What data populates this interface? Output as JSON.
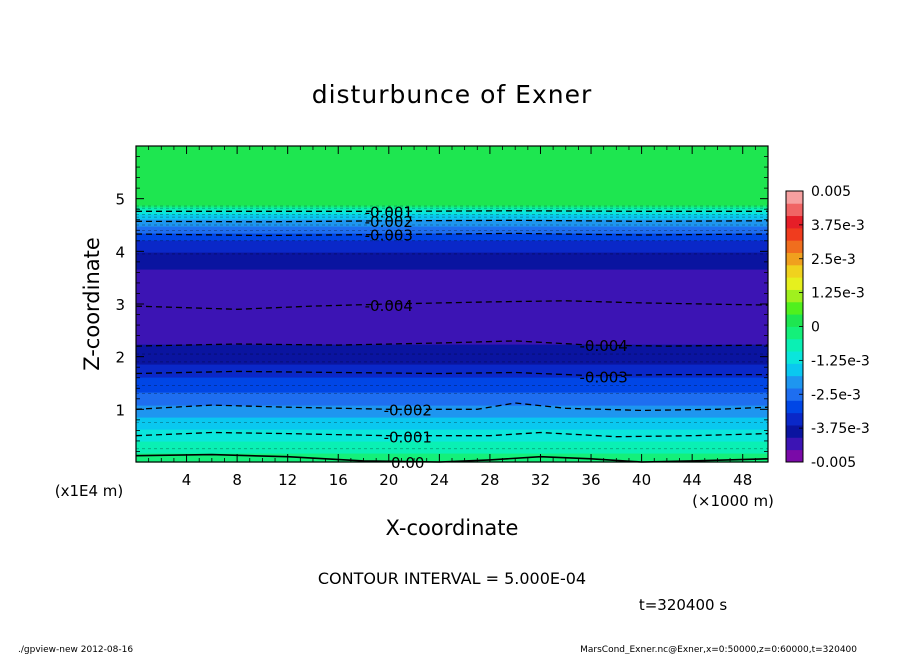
{
  "chart_data": {
    "type": "heatmap",
    "title": "disturbunce of Exner",
    "xlabel": "X-coordinate",
    "ylabel": "Z-coordinate",
    "x_unit": "(×1000 m)",
    "y_unit": "(x1E4 m)",
    "xlim": [
      0,
      50
    ],
    "ylim": [
      0,
      6
    ],
    "x_ticks": [
      4,
      8,
      12,
      16,
      20,
      24,
      28,
      32,
      36,
      40,
      44,
      48
    ],
    "y_ticks": [
      1,
      2,
      3,
      4,
      5
    ],
    "contour_interval_text": "CONTOUR INTERVAL = 5.000E-04",
    "time_text": "t=320400 s",
    "footer_left": "./gpview-new  2012-08-16",
    "footer_right": "MarsCond_Exner.nc@Exner,x=0:50000,z=0:60000,t=320400",
    "colorbar": {
      "range": [
        -0.005,
        0.005
      ],
      "labels": [
        "0.005",
        "3.75e-3",
        "2.5e-3",
        "1.25e-3",
        "0",
        "-1.25e-3",
        "-2.5e-3",
        "-3.75e-3",
        "-0.005"
      ],
      "colors": [
        "#7a0aa8",
        "#3c14b4",
        "#0a14a0",
        "#0a28c8",
        "#0046e6",
        "#1e6ef0",
        "#1e96f0",
        "#0ac8f0",
        "#0ae6dc",
        "#0af0b4",
        "#14f07a",
        "#1ee650",
        "#50f01e",
        "#a0f01e",
        "#e6f01e",
        "#f0d21e",
        "#f0a01e",
        "#f06e1e",
        "#f03c1e",
        "#e61e28",
        "#f06464",
        "#f6a0a0"
      ]
    },
    "profile": {
      "z": [
        0.0,
        0.05,
        0.3,
        0.55,
        0.8,
        1.0,
        1.25,
        1.5,
        1.75,
        2.0,
        2.25,
        2.6,
        3.0,
        3.5,
        3.9,
        4.25,
        4.45,
        4.65,
        4.8,
        4.88,
        6.0
      ],
      "value": [
        0.0,
        -0.0002,
        -0.0007,
        -0.0012,
        -0.0017,
        -0.0021,
        -0.0026,
        -0.003,
        -0.0034,
        -0.0039,
        -0.0041,
        -0.0043,
        -0.0044,
        -0.0043,
        -0.0038,
        -0.0031,
        -0.0024,
        -0.0017,
        -0.0008,
        0.0,
        0.0
      ]
    },
    "contours": [
      {
        "label": "0.00",
        "label_x": 21.5,
        "label_z": 0.0,
        "points": [
          [
            0,
            0.12
          ],
          [
            6,
            0.14
          ],
          [
            12,
            0.1
          ],
          [
            18,
            0.02
          ],
          [
            24,
            0.0
          ],
          [
            28,
            0.04
          ],
          [
            32,
            0.1
          ],
          [
            36,
            0.06
          ],
          [
            40,
            0.0
          ],
          [
            44,
            0.02
          ],
          [
            50,
            0.06
          ]
        ]
      },
      {
        "label": "-0.001",
        "label_x": 21.5,
        "label_z": 0.48,
        "points": [
          [
            0,
            0.5
          ],
          [
            6,
            0.56
          ],
          [
            12,
            0.54
          ],
          [
            20,
            0.5
          ],
          [
            28,
            0.5
          ],
          [
            32,
            0.56
          ],
          [
            38,
            0.48
          ],
          [
            44,
            0.5
          ],
          [
            50,
            0.54
          ]
        ]
      },
      {
        "label": "-0.002",
        "label_x": 21.5,
        "label_z": 1.0,
        "points": [
          [
            0,
            1.0
          ],
          [
            6,
            1.08
          ],
          [
            12,
            1.04
          ],
          [
            20,
            1.0
          ],
          [
            27,
            1.0
          ],
          [
            30,
            1.12
          ],
          [
            34,
            1.02
          ],
          [
            40,
            0.98
          ],
          [
            46,
            1.0
          ],
          [
            50,
            1.04
          ]
        ]
      },
      {
        "label": "-0.003",
        "label_x": 37.0,
        "label_z": 1.62,
        "points": [
          [
            0,
            1.68
          ],
          [
            8,
            1.72
          ],
          [
            16,
            1.7
          ],
          [
            24,
            1.68
          ],
          [
            30,
            1.7
          ],
          [
            36,
            1.64
          ],
          [
            42,
            1.66
          ],
          [
            50,
            1.66
          ]
        ]
      },
      {
        "label": "-0.004",
        "label_x": 37.0,
        "label_z": 2.22,
        "points": [
          [
            0,
            2.2
          ],
          [
            8,
            2.24
          ],
          [
            16,
            2.22
          ],
          [
            24,
            2.26
          ],
          [
            30,
            2.3
          ],
          [
            36,
            2.22
          ],
          [
            42,
            2.2
          ],
          [
            50,
            2.22
          ]
        ]
      },
      {
        "label": "-0.004",
        "label_x": 20.0,
        "label_z": 2.98,
        "points": [
          [
            0,
            2.96
          ],
          [
            8,
            2.9
          ],
          [
            14,
            2.96
          ],
          [
            20,
            3.0
          ],
          [
            28,
            3.04
          ],
          [
            34,
            3.06
          ],
          [
            40,
            3.02
          ],
          [
            50,
            2.98
          ]
        ]
      },
      {
        "label": "-0.003",
        "label_x": 20.0,
        "label_z": 4.32,
        "points": [
          [
            0,
            4.33
          ],
          [
            10,
            4.3
          ],
          [
            20,
            4.32
          ],
          [
            30,
            4.34
          ],
          [
            40,
            4.31
          ],
          [
            50,
            4.33
          ]
        ]
      },
      {
        "label": "-0.002",
        "label_x": 20.0,
        "label_z": 4.58,
        "points": [
          [
            0,
            4.57
          ],
          [
            10,
            4.56
          ],
          [
            20,
            4.58
          ],
          [
            30,
            4.59
          ],
          [
            40,
            4.57
          ],
          [
            50,
            4.58
          ]
        ]
      },
      {
        "label": "-0.001",
        "label_x": 20.0,
        "label_z": 4.76,
        "points": [
          [
            0,
            4.76
          ],
          [
            10,
            4.76
          ],
          [
            20,
            4.76
          ],
          [
            30,
            4.77
          ],
          [
            40,
            4.76
          ],
          [
            50,
            4.76
          ]
        ]
      }
    ],
    "minor_contours_z": [
      0.25,
      0.75,
      1.3,
      1.45,
      1.9,
      2.05,
      3.95,
      4.2,
      4.4,
      4.5,
      4.65,
      4.7,
      4.82,
      4.86
    ],
    "grid": false,
    "legend": "right"
  }
}
